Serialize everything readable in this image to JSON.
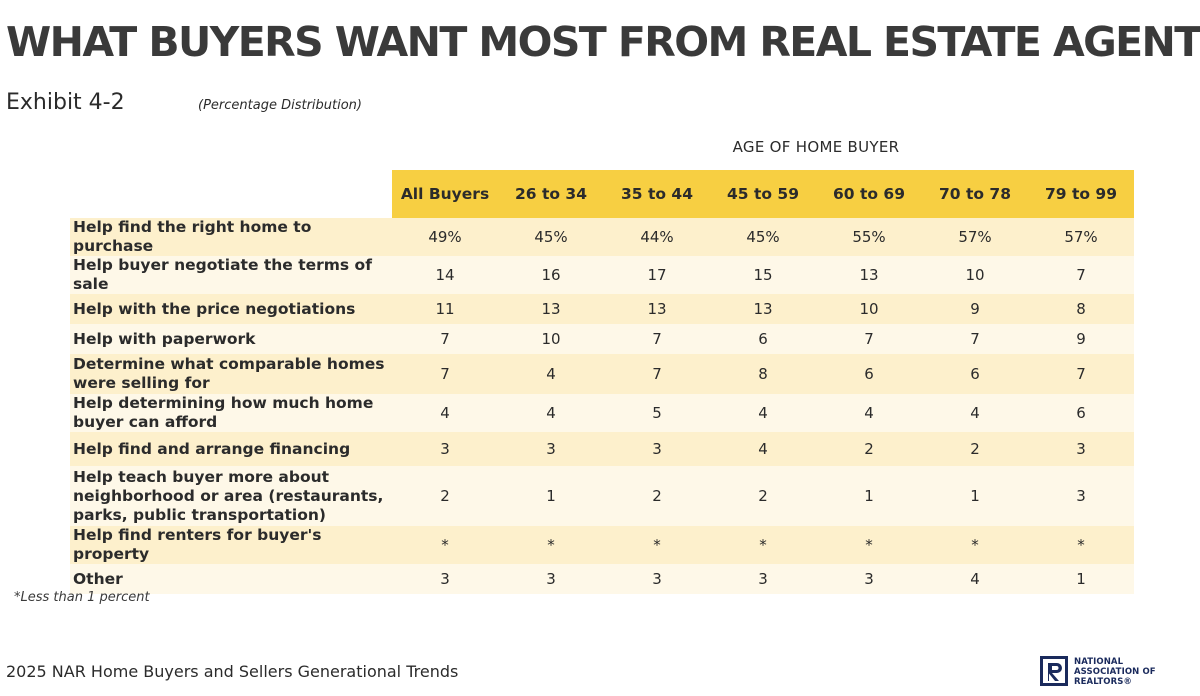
{
  "title": "WHAT BUYERS WANT MOST FROM REAL ESTATE AGENTS",
  "exhibit": "Exhibit 4-2",
  "subtitle": "(Percentage Distribution)",
  "group_header": "AGE OF HOME BUYER",
  "columns": [
    "All Buyers",
    "26 to 34",
    "35 to 44",
    "45 to 59",
    "60 to 69",
    "70 to 78",
    "79 to 99"
  ],
  "rows": [
    {
      "label": "Help find the right home to purchase",
      "values": [
        "49%",
        "45%",
        "44%",
        "45%",
        "55%",
        "57%",
        "57%"
      ]
    },
    {
      "label": "Help buyer negotiate the terms of sale",
      "values": [
        "14",
        "16",
        "17",
        "15",
        "13",
        "10",
        "7"
      ]
    },
    {
      "label": "Help with the price negotiations",
      "values": [
        "11",
        "13",
        "13",
        "13",
        "10",
        "9",
        "8"
      ]
    },
    {
      "label": "Help with paperwork",
      "values": [
        "7",
        "10",
        "7",
        "6",
        "7",
        "7",
        "9"
      ]
    },
    {
      "label": "Determine what comparable homes were selling for",
      "values": [
        "7",
        "4",
        "7",
        "8",
        "6",
        "6",
        "7"
      ]
    },
    {
      "label": "Help determining how much home buyer can afford",
      "values": [
        "4",
        "4",
        "5",
        "4",
        "4",
        "4",
        "6"
      ]
    },
    {
      "label": "Help find and arrange financing",
      "values": [
        "3",
        "3",
        "3",
        "4",
        "2",
        "2",
        "3"
      ]
    },
    {
      "label": "Help teach buyer more about neighborhood or area (restaurants, parks, public transportation)",
      "values": [
        "2",
        "1",
        "2",
        "2",
        "1",
        "1",
        "3"
      ]
    },
    {
      "label": "Help find renters for buyer's property",
      "values": [
        "*",
        "*",
        "*",
        "*",
        "*",
        "*",
        "*"
      ]
    },
    {
      "label": "Other",
      "values": [
        "3",
        "3",
        "3",
        "3",
        "3",
        "4",
        "1"
      ]
    }
  ],
  "footnote": "*Less than 1 percent",
  "source": "2025 NAR Home Buyers and Sellers Generational Trends",
  "logo": {
    "icon": "realtor-r-logo-icon",
    "lines": [
      "NATIONAL",
      "ASSOCIATION OF",
      "REALTORS®"
    ],
    "color": "#1a2a5c"
  },
  "colors": {
    "header_fill": "#f7cf42",
    "row_fill_odd": "#fdf0cc",
    "row_fill_even": "#fef8e8"
  }
}
